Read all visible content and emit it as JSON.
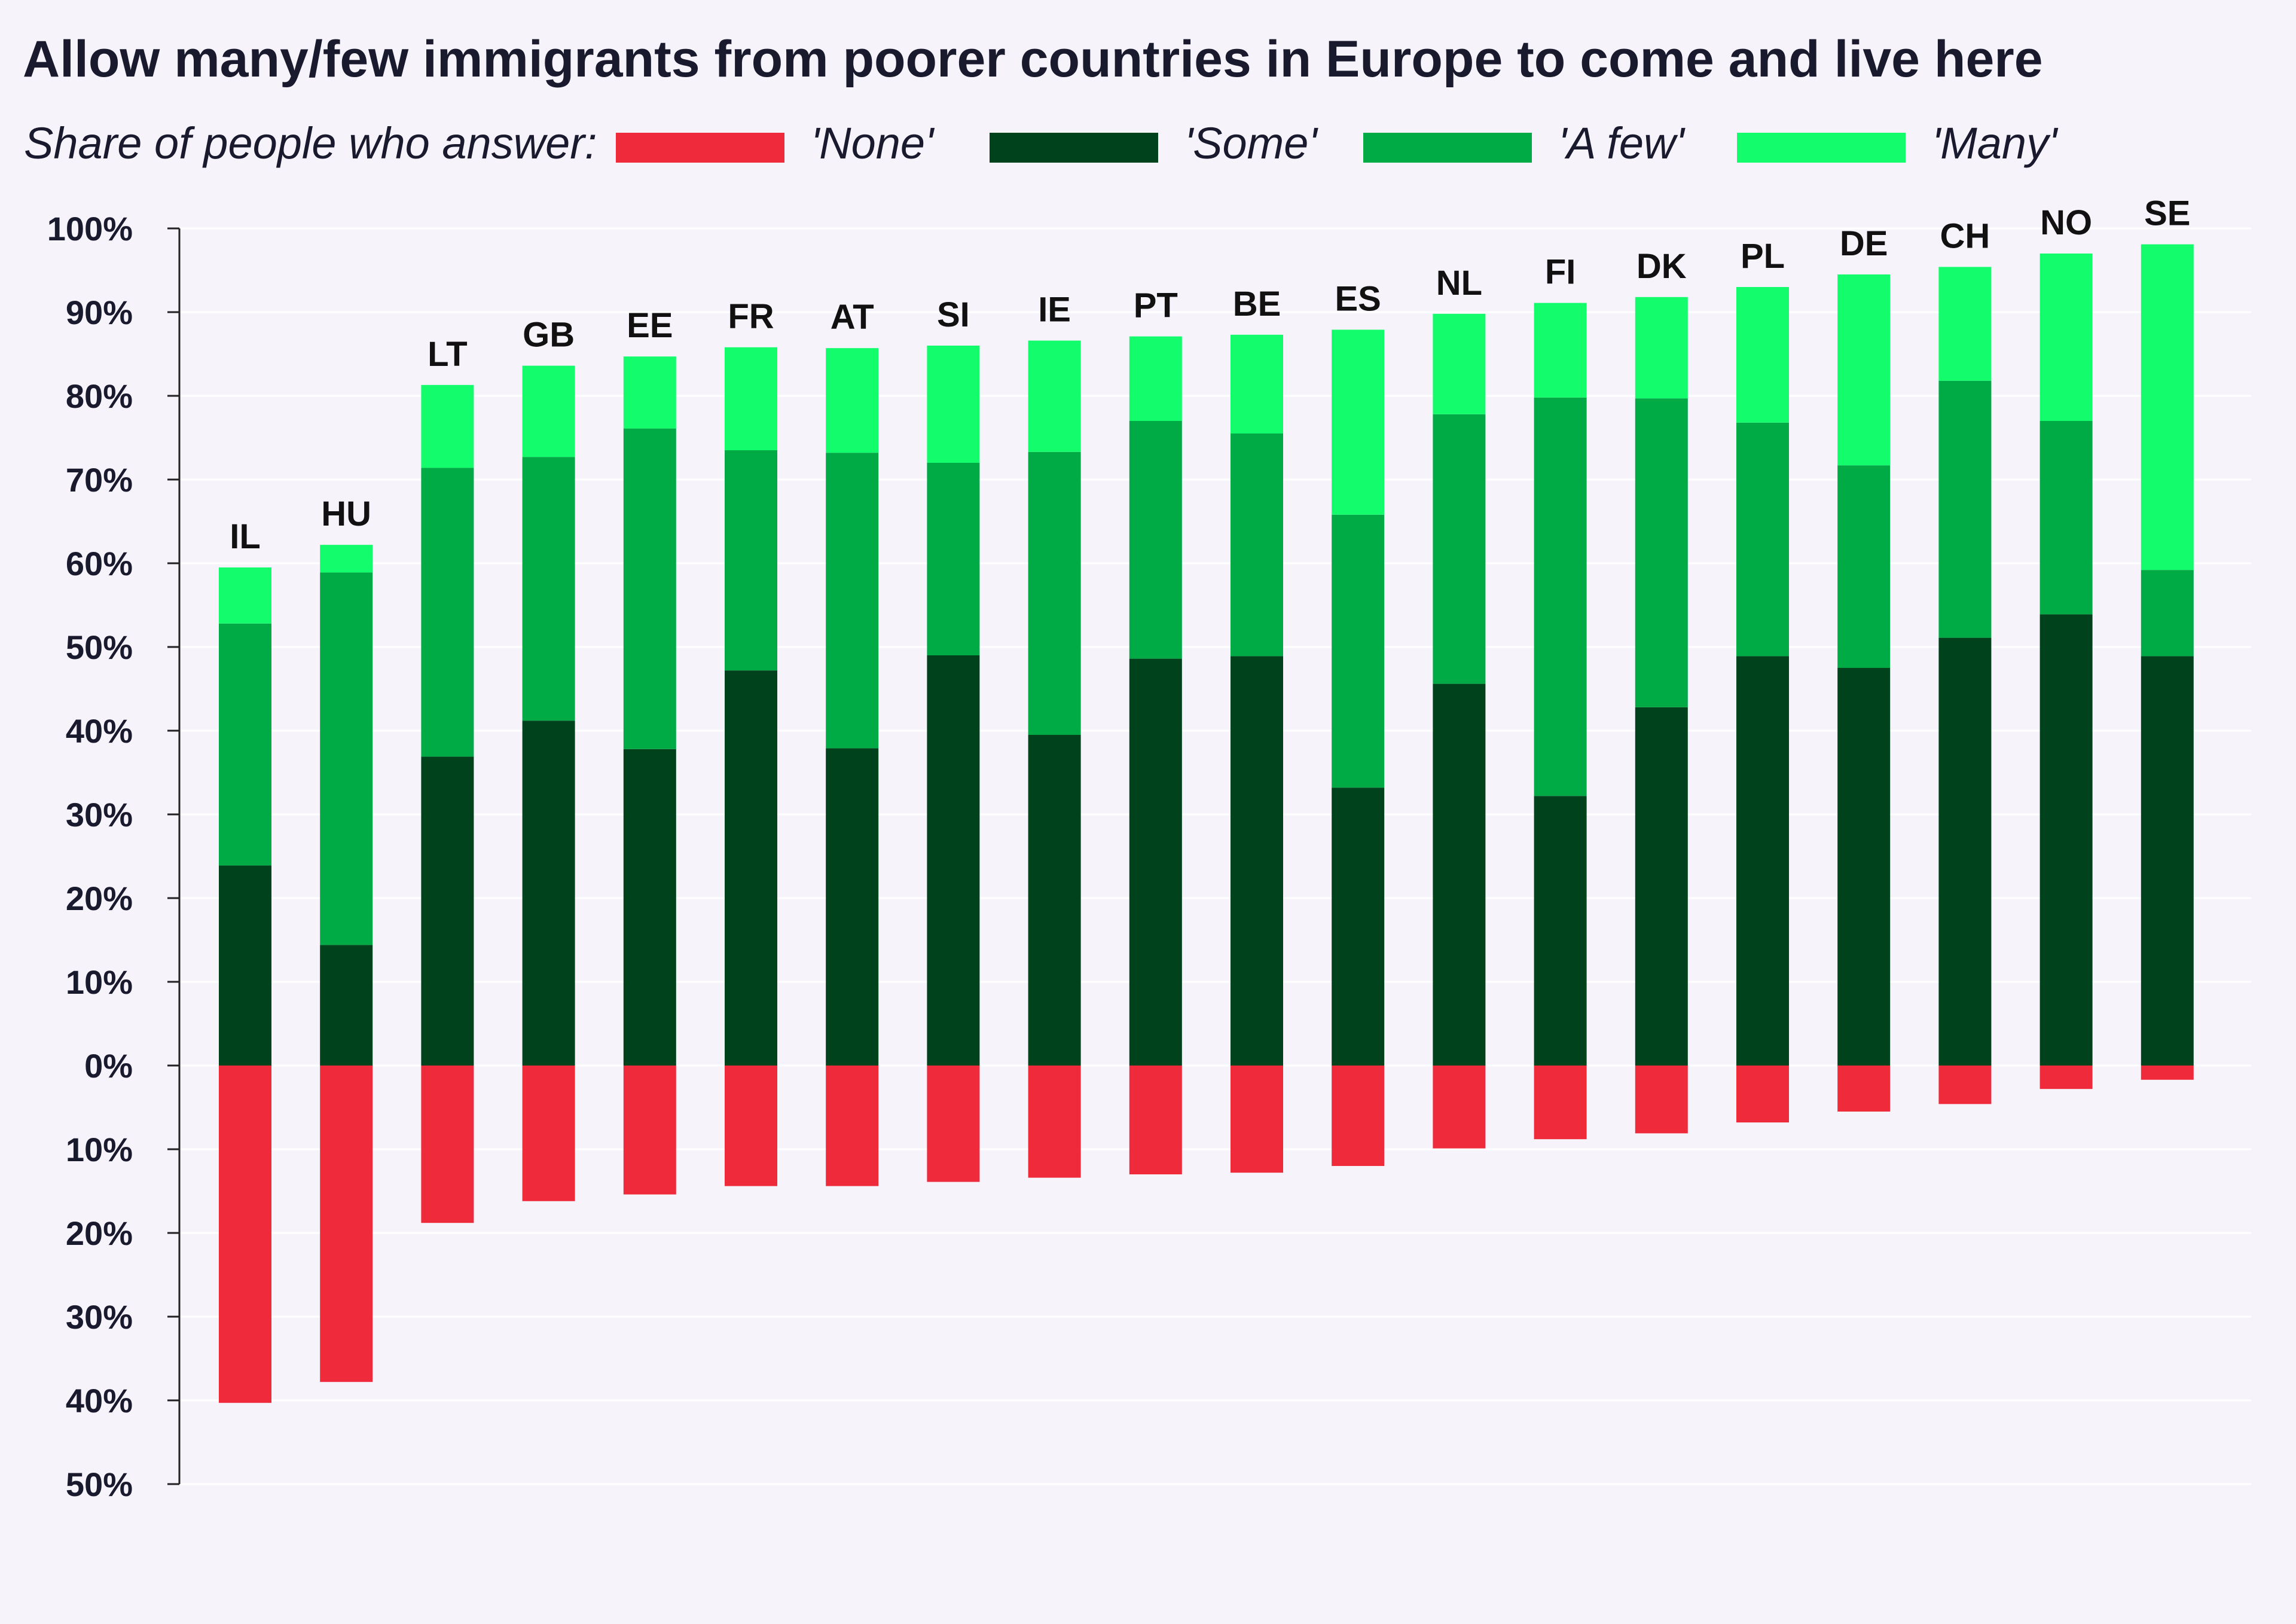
{
  "chart_data": {
    "type": "bar",
    "title": "Allow many/few immigrants from poorer countries in Europe to come and live here",
    "subtitle": "Share of people who answer:",
    "legend_placement": "top",
    "grid": true,
    "ylim": [
      -50,
      100
    ],
    "y_ticks": [
      100,
      90,
      80,
      70,
      60,
      50,
      40,
      30,
      20,
      10,
      0,
      -10,
      -20,
      -30,
      -40,
      -50
    ],
    "y_tick_labels": [
      "100%",
      "90%",
      "80%",
      "70%",
      "60%",
      "50%",
      "40%",
      "30%",
      "20%",
      "10%",
      "0%",
      "10%",
      "20%",
      "30%",
      "40%",
      "50%"
    ],
    "categories": [
      "IL",
      "HU",
      "LT",
      "GB",
      "EE",
      "FR",
      "AT",
      "SI",
      "IE",
      "PT",
      "BE",
      "ES",
      "NL",
      "FI",
      "DK",
      "PL",
      "DE",
      "CH",
      "NO",
      "SE"
    ],
    "series": [
      {
        "name": "'None'",
        "color": "#ee2a3b",
        "direction": "negative",
        "values": [
          40.3,
          37.8,
          18.8,
          16.2,
          15.4,
          14.4,
          14.4,
          13.9,
          13.4,
          13.0,
          12.8,
          12.0,
          9.9,
          8.8,
          8.1,
          6.8,
          5.5,
          4.6,
          2.8,
          1.7
        ]
      },
      {
        "name": "'Some'",
        "color": "#00421c",
        "values": [
          23.9,
          14.4,
          36.9,
          41.2,
          37.8,
          47.2,
          37.9,
          49.0,
          39.5,
          48.6,
          48.9,
          33.2,
          45.6,
          32.2,
          42.8,
          48.9,
          47.5,
          51.1,
          53.9,
          48.9
        ]
      },
      {
        "name": "'A few'",
        "color": "#00aa45",
        "values": [
          28.9,
          44.5,
          34.5,
          31.5,
          38.3,
          26.3,
          35.3,
          23.0,
          33.8,
          28.4,
          26.6,
          32.6,
          32.2,
          47.6,
          36.9,
          27.9,
          24.2,
          30.7,
          23.1,
          10.3
        ]
      },
      {
        "name": "'Many'",
        "color": "#13fc6c",
        "values": [
          6.7,
          3.3,
          9.9,
          10.9,
          8.6,
          12.3,
          12.5,
          14.0,
          13.3,
          10.1,
          11.8,
          22.1,
          12.0,
          11.3,
          12.1,
          16.2,
          22.8,
          13.6,
          20.0,
          38.9
        ]
      }
    ]
  }
}
